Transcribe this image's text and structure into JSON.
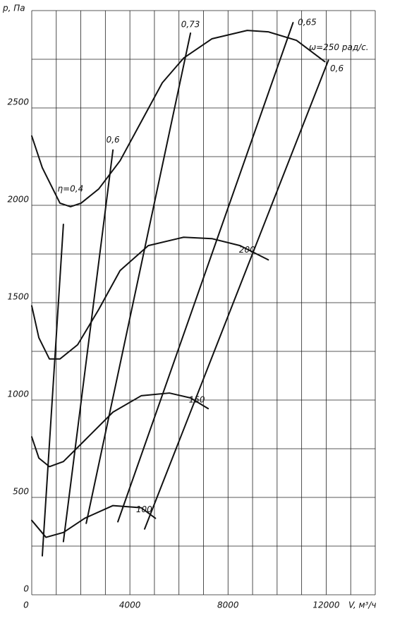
{
  "chart_data": {
    "type": "line",
    "y_label": "p, Па",
    "x_label": "V, м³/ч",
    "xlim": [
      0,
      14000
    ],
    "ylim": [
      0,
      3000
    ],
    "xticks": [
      0,
      4000,
      8000,
      12000
    ],
    "yticks": [
      0,
      500,
      1000,
      1500,
      2000,
      2500
    ],
    "x_grid": [
      0,
      1000,
      2000,
      3000,
      4000,
      5000,
      6000,
      7000,
      8000,
      9000,
      10000,
      11000,
      12000,
      13000,
      14000
    ],
    "y_grid": [
      0,
      250,
      500,
      750,
      1000,
      1250,
      1500,
      1750,
      2000,
      2250,
      2500,
      2750,
      3000
    ],
    "grid": true,
    "color": "#111111",
    "series": [
      {
        "name": "ω=250 рад/с.",
        "x": [
          0,
          430,
          1150,
          1580,
          2010,
          2730,
          3600,
          4460,
          5320,
          6190,
          7340,
          8780,
          9640,
          10790,
          11940
        ],
        "values": [
          2356,
          2193,
          2011,
          1993,
          2011,
          2084,
          2229,
          2429,
          2629,
          2756,
          2855,
          2898,
          2891,
          2847,
          2738
        ]
      },
      {
        "name": "200",
        "x": [
          0,
          290,
          720,
          1150,
          1870,
          2730,
          3600,
          4750,
          6190,
          7340,
          8490,
          9640
        ],
        "values": [
          1484,
          1320,
          1211,
          1211,
          1284,
          1465,
          1665,
          1793,
          1836,
          1829,
          1793,
          1720
        ]
      },
      {
        "name": "150",
        "x": [
          0,
          290,
          720,
          1290,
          2160,
          3310,
          4460,
          5610,
          6470,
          7190
        ],
        "values": [
          811,
          702,
          658,
          684,
          793,
          938,
          1022,
          1036,
          1011,
          956
        ]
      },
      {
        "name": "100",
        "x": [
          0,
          580,
          1290,
          2160,
          3310,
          4460,
          5040
        ],
        "values": [
          382,
          295,
          320,
          393,
          458,
          447,
          393
        ]
      },
      {
        "name": "η=0,4",
        "x": [
          430,
          1290
        ],
        "values": [
          200,
          1902
        ]
      },
      {
        "name": "0,6",
        "x": [
          1290,
          3310
        ],
        "values": [
          273,
          2284
        ]
      },
      {
        "name": "0,73",
        "x": [
          2220,
          6470
        ],
        "values": [
          367,
          2884
        ]
      },
      {
        "name": "0,65",
        "x": [
          3510,
          10650
        ],
        "values": [
          375,
          2938
        ]
      },
      {
        "name": "0,6",
        "x": [
          4600,
          12090
        ],
        "values": [
          338,
          2745
        ]
      }
    ]
  }
}
